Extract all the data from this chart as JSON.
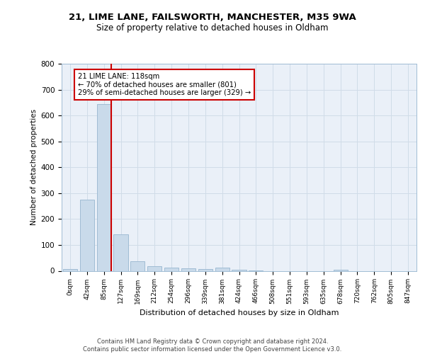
{
  "title1": "21, LIME LANE, FAILSWORTH, MANCHESTER, M35 9WA",
  "title2": "Size of property relative to detached houses in Oldham",
  "xlabel": "Distribution of detached houses by size in Oldham",
  "ylabel": "Number of detached properties",
  "bin_labels": [
    "0sqm",
    "42sqm",
    "85sqm",
    "127sqm",
    "169sqm",
    "212sqm",
    "254sqm",
    "296sqm",
    "339sqm",
    "381sqm",
    "424sqm",
    "466sqm",
    "508sqm",
    "551sqm",
    "593sqm",
    "635sqm",
    "678sqm",
    "720sqm",
    "762sqm",
    "805sqm",
    "847sqm"
  ],
  "bar_values": [
    7,
    275,
    645,
    140,
    37,
    18,
    13,
    9,
    7,
    13,
    4,
    1,
    0,
    0,
    0,
    0,
    5,
    0,
    0,
    0,
    0
  ],
  "bar_color": "#c9daea",
  "bar_edge_color": "#a0bcd4",
  "vline_color": "#cc0000",
  "annotation_text": "21 LIME LANE: 118sqm\n← 70% of detached houses are smaller (801)\n29% of semi-detached houses are larger (329) →",
  "annotation_box_color": "white",
  "annotation_box_edge_color": "#cc0000",
  "ylim": [
    0,
    800
  ],
  "yticks": [
    0,
    100,
    200,
    300,
    400,
    500,
    600,
    700,
    800
  ],
  "grid_color": "#d0dce8",
  "background_color": "#eaf0f8",
  "footer": "Contains HM Land Registry data © Crown copyright and database right 2024.\nContains public sector information licensed under the Open Government Licence v3.0."
}
